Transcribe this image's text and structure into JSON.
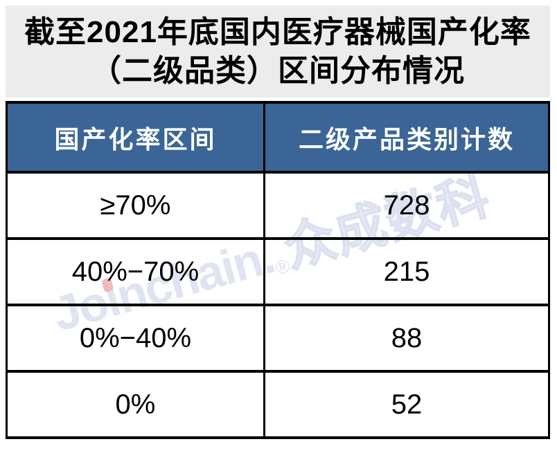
{
  "figure": {
    "title_line1": "截至2021年底国内医疗器械国产化率",
    "title_line2": "（二级品类）区间分布情况"
  },
  "table": {
    "headers": {
      "range": "国产化率区间",
      "count": "二级产品类别计数"
    },
    "rows": [
      {
        "range": "≥70%",
        "count": "728"
      },
      {
        "range": "40%−70%",
        "count": "215"
      },
      {
        "range": "0%−40%",
        "count": "88"
      },
      {
        "range": "0%",
        "count": "52"
      }
    ]
  },
  "watermark": {
    "part1": "Jo",
    "dotless_i": "ı",
    "part2": "nchain",
    "dot": ".",
    "registered": "®",
    "cjk": "众成数科"
  },
  "colors": {
    "header_bg": "#3A6596",
    "header_text": "#FFFFFF",
    "title_bg": "#ECECEC",
    "border": "#000000",
    "watermark": "#DFE4F1",
    "watermark_accent": "#F1BABA"
  },
  "chart_data": {
    "type": "table",
    "title": "截至2021年底国内医疗器械国产化率（二级品类）区间分布情况",
    "columns": [
      "国产化率区间",
      "二级产品类别计数"
    ],
    "rows": [
      [
        "≥70%",
        728
      ],
      [
        "40%−70%",
        215
      ],
      [
        "0%−40%",
        88
      ],
      [
        "0%",
        52
      ]
    ]
  }
}
